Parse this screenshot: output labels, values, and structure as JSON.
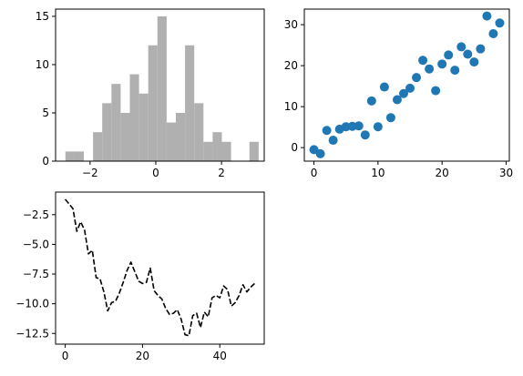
{
  "colors": {
    "hist_bar": "#b0b0b0",
    "scatter_point": "#1f77b4",
    "line": "#000000",
    "axes": "#000000",
    "background": "#ffffff"
  },
  "chart_data": [
    {
      "type": "bar",
      "subtype": "histogram",
      "title": "",
      "xlabel": "",
      "ylabel": "",
      "xlim": [
        -3.05,
        3.3
      ],
      "ylim": [
        0,
        15.75
      ],
      "xticks": [
        -2,
        0,
        2
      ],
      "xtick_labels": [
        "−2",
        "0",
        "2"
      ],
      "yticks": [
        0,
        5,
        10,
        15
      ],
      "ytick_labels": [
        "0",
        "5",
        "10",
        "15"
      ],
      "grid": false,
      "legend": "none",
      "bin_edges": [
        -2.75,
        -2.47,
        -2.19,
        -1.91,
        -1.63,
        -1.35,
        -1.07,
        -0.79,
        -0.51,
        -0.23,
        0.05,
        0.33,
        0.61,
        0.89,
        1.17,
        1.45,
        1.73,
        2.01,
        2.29,
        2.57,
        2.85,
        3.13
      ],
      "values": [
        1,
        1,
        0,
        3,
        6,
        8,
        5,
        9,
        7,
        12,
        15,
        4,
        5,
        12,
        6,
        2,
        3,
        2,
        0,
        0,
        2
      ]
    },
    {
      "type": "scatter",
      "title": "",
      "xlabel": "",
      "ylabel": "",
      "xlim": [
        -1.5,
        30.5
      ],
      "ylim": [
        -3.3,
        33.8
      ],
      "xticks": [
        0,
        10,
        20,
        30
      ],
      "xtick_labels": [
        "0",
        "10",
        "20",
        "30"
      ],
      "yticks": [
        0,
        10,
        20,
        30
      ],
      "ytick_labels": [
        "0",
        "10",
        "20",
        "30"
      ],
      "grid": false,
      "legend": "none",
      "x": [
        0,
        1,
        2,
        3,
        4,
        5,
        6,
        7,
        8,
        9,
        10,
        11,
        12,
        13,
        14,
        15,
        16,
        17,
        18,
        19,
        20,
        21,
        22,
        23,
        24,
        25,
        26,
        27,
        28,
        29
      ],
      "y": [
        -0.5,
        -1.5,
        4.2,
        1.8,
        4.5,
        5.1,
        5.2,
        5.3,
        3.1,
        11.4,
        5.1,
        14.8,
        7.3,
        11.7,
        13.2,
        14.5,
        17.1,
        21.3,
        19.2,
        13.9,
        20.4,
        22.6,
        18.9,
        24.6,
        22.8,
        20.9,
        24.1,
        32.1,
        27.8,
        30.4
      ]
    },
    {
      "type": "line",
      "style": "dashed",
      "title": "",
      "xlabel": "",
      "ylabel": "",
      "xlim": [
        -2.5,
        51.5
      ],
      "ylim": [
        -13.4,
        -0.6
      ],
      "xticks": [
        0,
        20,
        40
      ],
      "xtick_labels": [
        "0",
        "20",
        "40"
      ],
      "yticks": [
        -2.5,
        -5.0,
        -7.5,
        -10.0,
        -12.5
      ],
      "ytick_labels": [
        "−2.5",
        "−5.0",
        "−7.5",
        "−10.0",
        "−12.5"
      ],
      "grid": false,
      "legend": "none",
      "x": [
        0,
        1,
        2,
        3,
        4,
        5,
        6,
        7,
        8,
        9,
        10,
        11,
        12,
        13,
        14,
        15,
        16,
        17,
        18,
        19,
        20,
        21,
        22,
        23,
        24,
        25,
        26,
        27,
        28,
        29,
        30,
        31,
        32,
        33,
        34,
        35,
        36,
        37,
        38,
        39,
        40,
        41,
        42,
        43,
        44,
        45,
        46,
        47,
        48,
        49
      ],
      "y": [
        -1.2,
        -1.6,
        -2.0,
        -3.9,
        -3.1,
        -3.8,
        -5.8,
        -5.5,
        -7.8,
        -7.9,
        -9.0,
        -10.6,
        -9.9,
        -9.8,
        -9.1,
        -8.2,
        -7.2,
        -6.5,
        -7.3,
        -8.1,
        -8.3,
        -8.2,
        -7.0,
        -8.9,
        -9.3,
        -9.6,
        -10.4,
        -10.9,
        -10.8,
        -10.5,
        -11.3,
        -12.6,
        -12.7,
        -11.0,
        -10.8,
        -12.0,
        -10.7,
        -11.1,
        -9.5,
        -9.3,
        -9.5,
        -8.5,
        -8.8,
        -10.2,
        -9.9,
        -9.3,
        -8.4,
        -9.0,
        -8.6,
        -8.3
      ]
    }
  ]
}
